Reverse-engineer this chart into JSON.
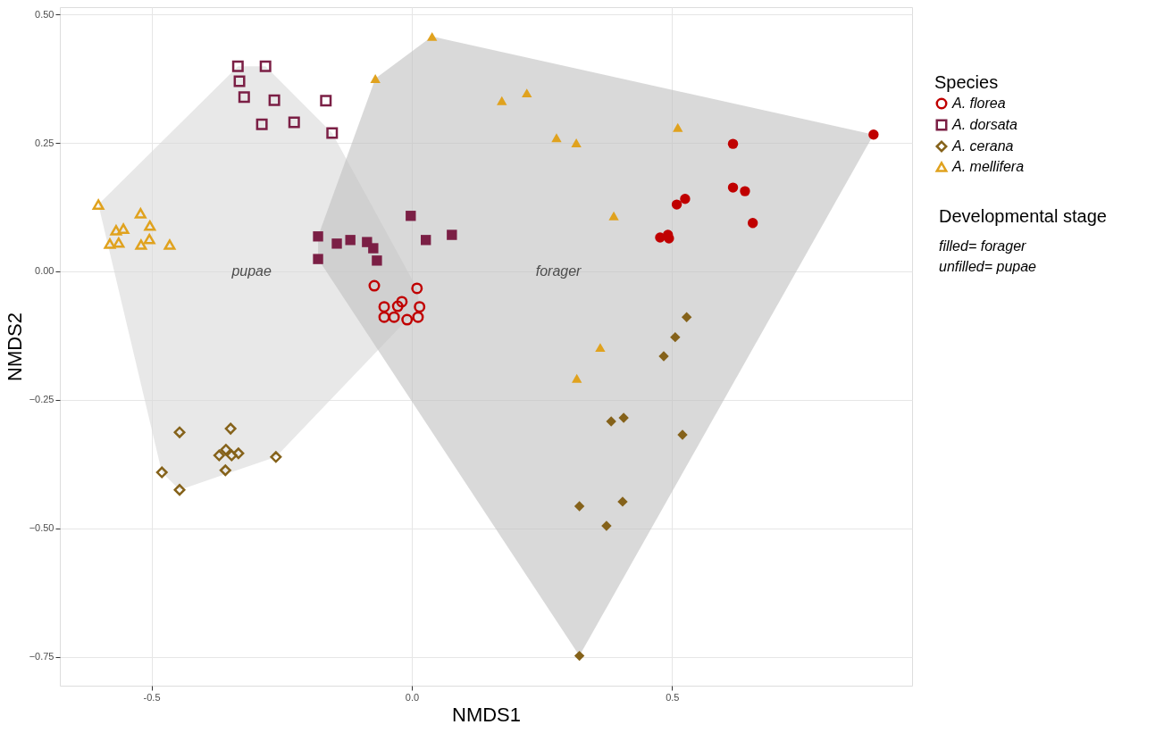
{
  "chart_data": {
    "type": "scatter",
    "xlabel": "NMDS1",
    "ylabel": "NMDS2",
    "legend_title": "Species",
    "legend": "right",
    "grid": true,
    "xlim": [
      -0.676,
      0.961
    ],
    "ylim": [
      -0.806,
      0.514
    ],
    "xticks": [
      {
        "value": -0.5,
        "label": "-0.5"
      },
      {
        "value": 0,
        "label": "0.0"
      },
      {
        "value": 0.5,
        "label": "0.5"
      }
    ],
    "yticks": [
      {
        "value": -0.75,
        "label": "−0.75"
      },
      {
        "value": -0.5,
        "label": "−0.50"
      },
      {
        "value": -0.25,
        "label": "−0.25"
      },
      {
        "value": 0,
        "label": "0.00"
      },
      {
        "value": 0.25,
        "label": "0.25"
      },
      {
        "value": 0.5,
        "label": "0.50"
      }
    ],
    "annotations": [
      "Developmental stage",
      "filled= forager",
      "unfilled= pupae",
      "pupae",
      "forager"
    ],
    "series": [
      {
        "type": "area",
        "color": "#d9d9d9",
        "x": [
          -0.602,
          -0.334,
          -0.281,
          -0.153,
          0.01,
          0.015,
          -0.009,
          -0.261,
          -0.446,
          -0.48
        ],
        "values": [
          0.13,
          0.399,
          0.399,
          0.269,
          -0.033,
          -0.069,
          -0.094,
          -0.361,
          -0.425,
          -0.391
        ]
      },
      {
        "type": "area",
        "color": "#bfbfbf",
        "x": [
          0.039,
          0.887,
          0.322,
          -0.18,
          -0.18,
          -0.07
        ],
        "values": [
          0.457,
          0.266,
          -0.748,
          0.024,
          0.068,
          0.375
        ]
      },
      {
        "name": "A. florea",
        "color": "#c00000",
        "marker": "circle",
        "x": [
          -0.072,
          -0.053,
          -0.053,
          -0.034,
          -0.027,
          -0.019,
          -0.009,
          0.01,
          0.015,
          0.012
        ],
        "values": [
          -0.028,
          -0.069,
          -0.089,
          -0.089,
          -0.068,
          -0.059,
          -0.094,
          -0.033,
          -0.069,
          -0.089
        ]
      },
      {
        "name": "A. dorsata",
        "color": "#7b1f45",
        "marker": "square",
        "x": [
          -0.334,
          -0.281,
          -0.331,
          -0.322,
          -0.264,
          -0.165,
          -0.288,
          -0.226,
          -0.153
        ],
        "values": [
          0.399,
          0.399,
          0.37,
          0.339,
          0.333,
          0.332,
          0.286,
          0.29,
          0.269
        ]
      },
      {
        "name": "A. cerana",
        "color": "#85621a",
        "marker": "diamond",
        "x": [
          -0.446,
          -0.348,
          -0.48,
          -0.446,
          -0.37,
          -0.357,
          -0.346,
          -0.333,
          -0.358,
          -0.261
        ],
        "values": [
          -0.313,
          -0.306,
          -0.391,
          -0.425,
          -0.358,
          -0.347,
          -0.358,
          -0.354,
          -0.387,
          -0.361
        ]
      },
      {
        "name": "A. mellifera",
        "color": "#e0a21e",
        "marker": "triangle",
        "x": [
          -0.602,
          -0.521,
          -0.568,
          -0.554,
          -0.503,
          -0.58,
          -0.563,
          -0.52,
          -0.504,
          -0.465
        ],
        "values": [
          0.13,
          0.113,
          0.08,
          0.083,
          0.089,
          0.054,
          0.056,
          0.052,
          0.063,
          0.052
        ]
      },
      {
        "color": "#c00000",
        "marker": "circle",
        "x": [
          0.887,
          0.617,
          0.617,
          0.64,
          0.655,
          0.509,
          0.525,
          0.477,
          0.492,
          0.494
        ],
        "values": [
          0.266,
          0.248,
          0.163,
          0.156,
          0.094,
          0.13,
          0.141,
          0.066,
          0.071,
          0.064
        ]
      },
      {
        "color": "#7b1f45",
        "marker": "square",
        "x": [
          -0.18,
          -0.18,
          -0.144,
          -0.118,
          -0.086,
          -0.074,
          -0.067,
          -0.002,
          0.027,
          0.077
        ],
        "values": [
          0.068,
          0.024,
          0.054,
          0.061,
          0.057,
          0.045,
          0.021,
          0.108,
          0.061,
          0.071
        ]
      },
      {
        "color": "#85621a",
        "marker": "diamond",
        "x": [
          0.528,
          0.506,
          0.484,
          0.383,
          0.407,
          0.52,
          0.322,
          0.405,
          0.374,
          0.322
        ],
        "values": [
          -0.089,
          -0.128,
          -0.165,
          -0.292,
          -0.285,
          -0.318,
          -0.457,
          -0.448,
          -0.495,
          -0.748
        ]
      },
      {
        "color": "#e0a21e",
        "marker": "triangle",
        "x": [
          0.039,
          -0.07,
          0.173,
          0.221,
          0.278,
          0.316,
          0.511,
          0.388,
          0.362,
          0.317
        ],
        "values": [
          0.457,
          0.375,
          0.332,
          0.347,
          0.26,
          0.25,
          0.28,
          0.108,
          -0.148,
          -0.208
        ]
      }
    ]
  }
}
